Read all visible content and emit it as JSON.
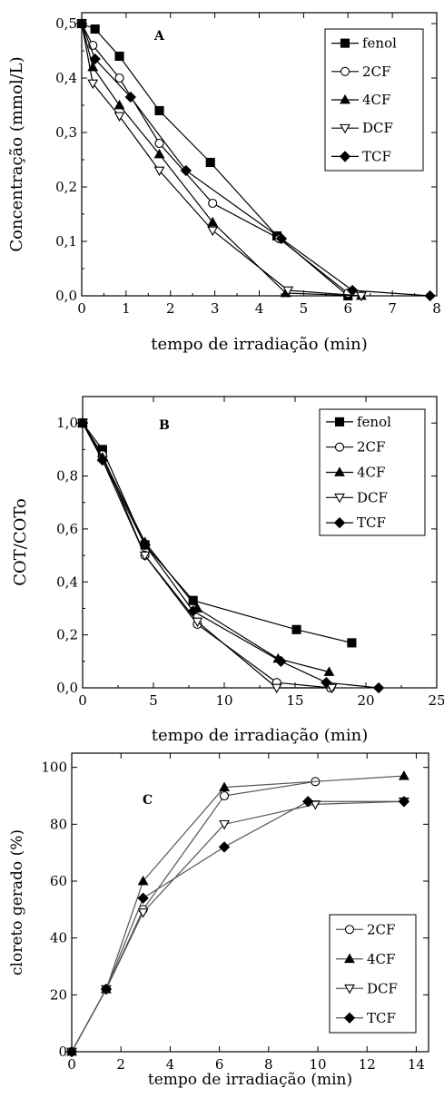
{
  "figure": {
    "background": "#ffffff",
    "ink": "#000000",
    "line_gray": "#555555"
  },
  "chart_data": [
    {
      "panel_label": "A",
      "type": "line",
      "xlabel": "tempo de irradiação (min)",
      "ylabel": "Concentração (mmol/L)",
      "xlim": [
        0,
        8
      ],
      "ylim": [
        0,
        0.52
      ],
      "x_ticks": [
        0,
        1,
        2,
        3,
        4,
        5,
        6,
        7,
        8
      ],
      "x_tick_labels": [
        "0",
        "1",
        "2",
        "3",
        "4",
        "5",
        "6",
        "7",
        "8"
      ],
      "y_ticks": [
        0,
        0.1,
        0.2,
        0.3,
        0.4,
        0.5
      ],
      "y_tick_labels": [
        "0,0",
        "0,1",
        "0,2",
        "0,3",
        "0,4",
        "0,5"
      ],
      "legend_position": "top-right",
      "series": [
        {
          "name": "fenol",
          "marker": "square-filled",
          "x": [
            0,
            0.3,
            0.85,
            1.75,
            2.9,
            4.4,
            6.0
          ],
          "y": [
            0.5,
            0.49,
            0.44,
            0.34,
            0.245,
            0.11,
            0.0
          ]
        },
        {
          "name": "2CF",
          "marker": "circle-open",
          "x": [
            0,
            0.25,
            0.85,
            1.75,
            2.95,
            4.45,
            6.0
          ],
          "y": [
            0.5,
            0.46,
            0.4,
            0.28,
            0.17,
            0.105,
            0.005
          ]
        },
        {
          "name": "4CF",
          "marker": "triangle-up-filled",
          "x": [
            0,
            0.25,
            0.85,
            1.75,
            2.95,
            4.6,
            6.3
          ],
          "y": [
            0.5,
            0.42,
            0.35,
            0.26,
            0.135,
            0.005,
            0.0
          ]
        },
        {
          "name": "DCF",
          "marker": "triangle-down-open",
          "x": [
            0,
            0.25,
            0.85,
            1.75,
            2.95,
            4.65,
            6.3
          ],
          "y": [
            0.5,
            0.39,
            0.33,
            0.23,
            0.12,
            0.01,
            0.0
          ]
        },
        {
          "name": "TCF",
          "marker": "diamond-filled",
          "x": [
            0,
            0.3,
            1.1,
            2.35,
            4.5,
            6.1,
            7.85
          ],
          "y": [
            0.5,
            0.435,
            0.365,
            0.23,
            0.105,
            0.01,
            0.0
          ]
        }
      ]
    },
    {
      "panel_label": "B",
      "type": "line",
      "xlabel": "tempo de irradiação (min)",
      "ylabel": "COT/COTo",
      "xlim": [
        0,
        25
      ],
      "ylim": [
        0,
        1.1
      ],
      "x_ticks": [
        0,
        5,
        10,
        15,
        20,
        25
      ],
      "x_tick_labels": [
        "0",
        "5",
        "10",
        "15",
        "20",
        "25"
      ],
      "y_ticks": [
        0,
        0.2,
        0.4,
        0.6,
        0.8,
        1.0
      ],
      "y_tick_labels": [
        "0,0",
        "0,2",
        "0,4",
        "0,6",
        "0,8",
        "1,0"
      ],
      "legend_position": "top-right",
      "series": [
        {
          "name": "fenol",
          "marker": "square-filled",
          "x": [
            0,
            1.4,
            4.4,
            7.8,
            15.1,
            19.0
          ],
          "y": [
            1.0,
            0.9,
            0.54,
            0.33,
            0.22,
            0.17
          ]
        },
        {
          "name": "2CF",
          "marker": "circle-open",
          "x": [
            0,
            1.4,
            4.4,
            8.1,
            13.7,
            17.5
          ],
          "y": [
            1.0,
            0.88,
            0.5,
            0.24,
            0.02,
            0.0
          ]
        },
        {
          "name": "4CF",
          "marker": "triangle-up-filled",
          "x": [
            0,
            1.4,
            4.4,
            8.1,
            13.8,
            17.4
          ],
          "y": [
            1.0,
            0.87,
            0.55,
            0.3,
            0.11,
            0.06
          ]
        },
        {
          "name": "DCF",
          "marker": "triangle-down-open",
          "x": [
            0,
            1.4,
            4.4,
            8.1,
            13.7,
            17.6
          ],
          "y": [
            1.0,
            0.86,
            0.5,
            0.25,
            0.0,
            0.0
          ]
        },
        {
          "name": "TCF",
          "marker": "diamond-filled",
          "x": [
            0,
            1.4,
            4.4,
            7.8,
            14.0,
            17.2,
            20.9
          ],
          "y": [
            1.0,
            0.86,
            0.54,
            0.29,
            0.1,
            0.02,
            0.0
          ]
        }
      ]
    },
    {
      "panel_label": "C",
      "type": "line",
      "xlabel": "tempo de irradiação (min)",
      "ylabel": "cloreto gerado (%)",
      "xlim": [
        0,
        14.5
      ],
      "ylim": [
        0,
        105
      ],
      "x_ticks": [
        0,
        2,
        4,
        6,
        8,
        10,
        12,
        14
      ],
      "x_tick_labels": [
        "0",
        "2",
        "4",
        "6",
        "8",
        "10",
        "12",
        "14"
      ],
      "y_ticks": [
        0,
        20,
        40,
        60,
        80,
        100
      ],
      "y_tick_labels": [
        "0",
        "20",
        "40",
        "60",
        "80",
        "100"
      ],
      "legend_position": "bottom-right",
      "series": [
        {
          "name": "2CF",
          "marker": "circle-open",
          "x": [
            0,
            1.4,
            2.9,
            6.2,
            9.9
          ],
          "y": [
            0,
            22,
            50,
            90,
            95
          ]
        },
        {
          "name": "4CF",
          "marker": "triangle-up-filled",
          "x": [
            0,
            1.4,
            2.9,
            6.2,
            13.5
          ],
          "y": [
            0,
            22,
            60,
            93,
            97
          ]
        },
        {
          "name": "DCF",
          "marker": "triangle-down-open",
          "x": [
            0,
            1.4,
            2.9,
            6.2,
            9.9,
            13.5
          ],
          "y": [
            0,
            22,
            49,
            80,
            87,
            88
          ]
        },
        {
          "name": "TCF",
          "marker": "diamond-filled",
          "x": [
            0,
            1.4,
            2.9,
            6.2,
            9.6,
            13.5
          ],
          "y": [
            0,
            22,
            54,
            72,
            88,
            88
          ]
        }
      ]
    }
  ]
}
